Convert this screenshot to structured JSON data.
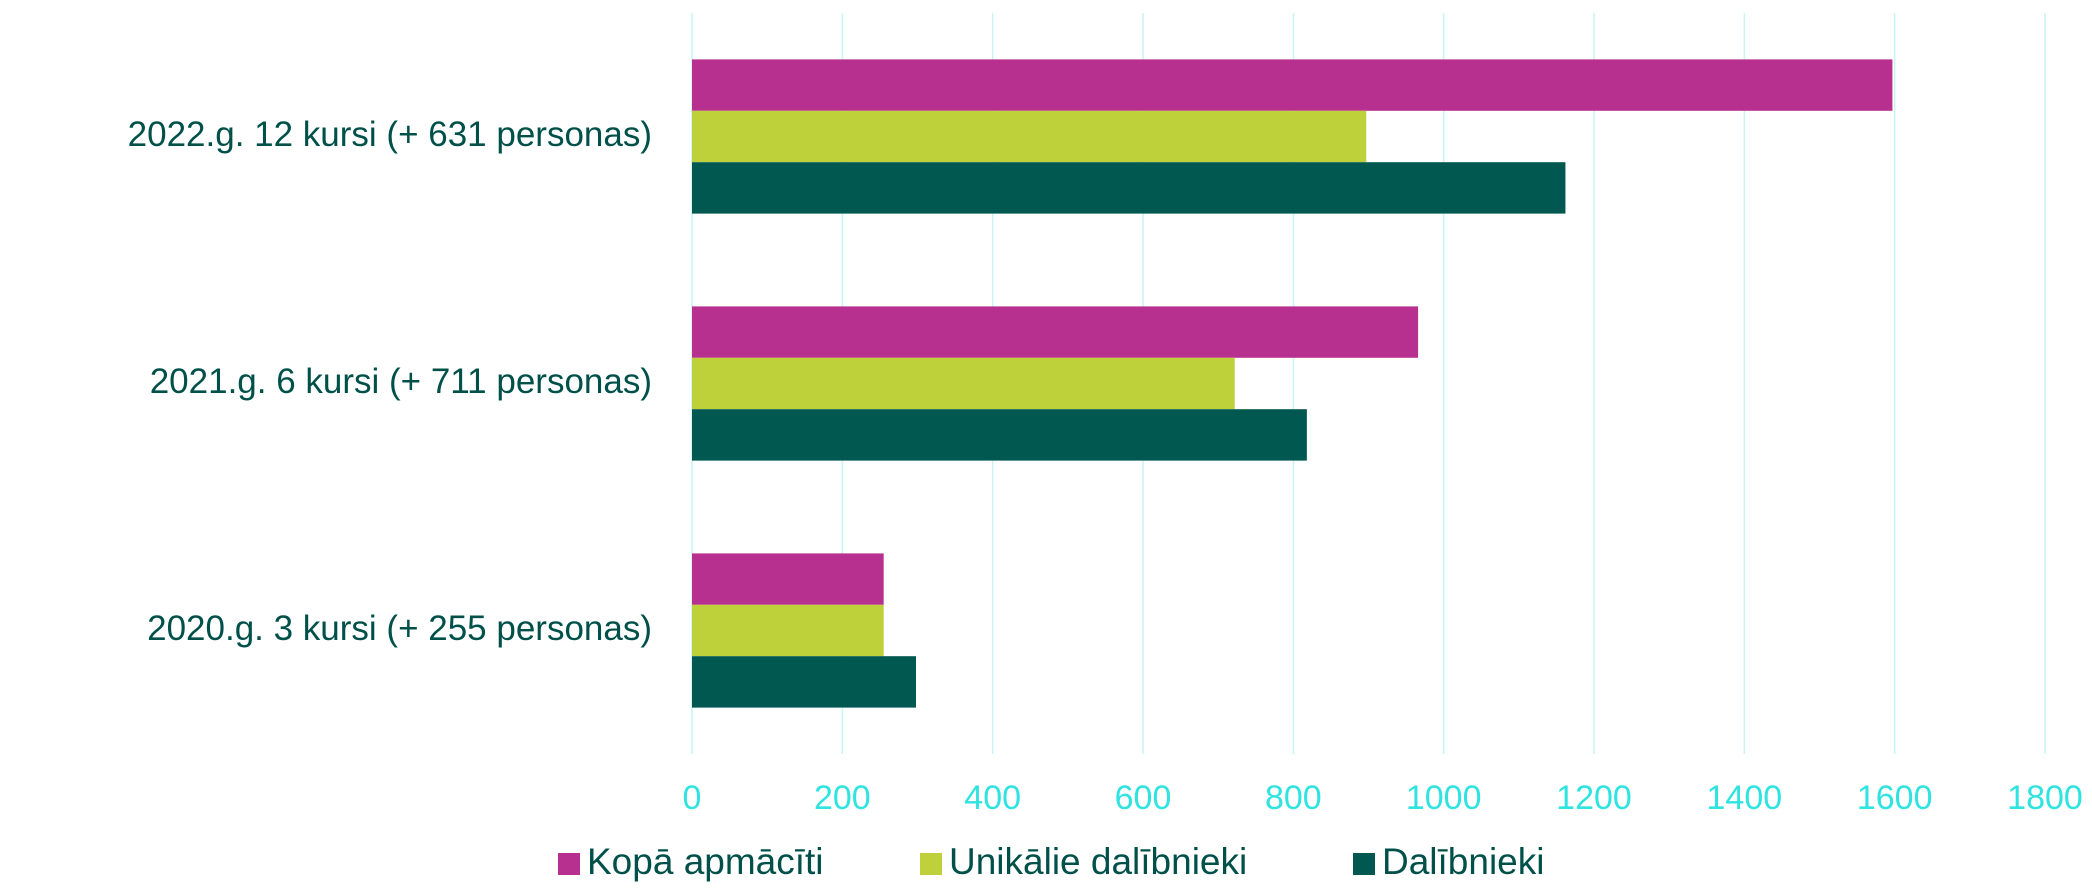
{
  "chart_data": {
    "type": "barh",
    "categories": [
      "2022.g. 12 kursi (+ 631 personas)",
      "2021.g. 6 kursi (+ 711 personas)",
      "2020.g. 3 kursi (+ 255 personas)"
    ],
    "series": [
      {
        "name": "Kopā apmācīti",
        "color": "#b8308f",
        "values": [
          1597,
          966,
          255
        ]
      },
      {
        "name": "Unikālie dalībnieki",
        "color": "#bed13b",
        "values": [
          897,
          722,
          255
        ]
      },
      {
        "name": "Dalībnieki",
        "color": "#005850",
        "values": [
          1162,
          818,
          298
        ]
      }
    ],
    "xlim": [
      0,
      1800
    ],
    "xticks": [
      0,
      200,
      400,
      600,
      800,
      1000,
      1200,
      1400,
      1600,
      1800
    ],
    "grid": true,
    "legend": "bottom"
  }
}
